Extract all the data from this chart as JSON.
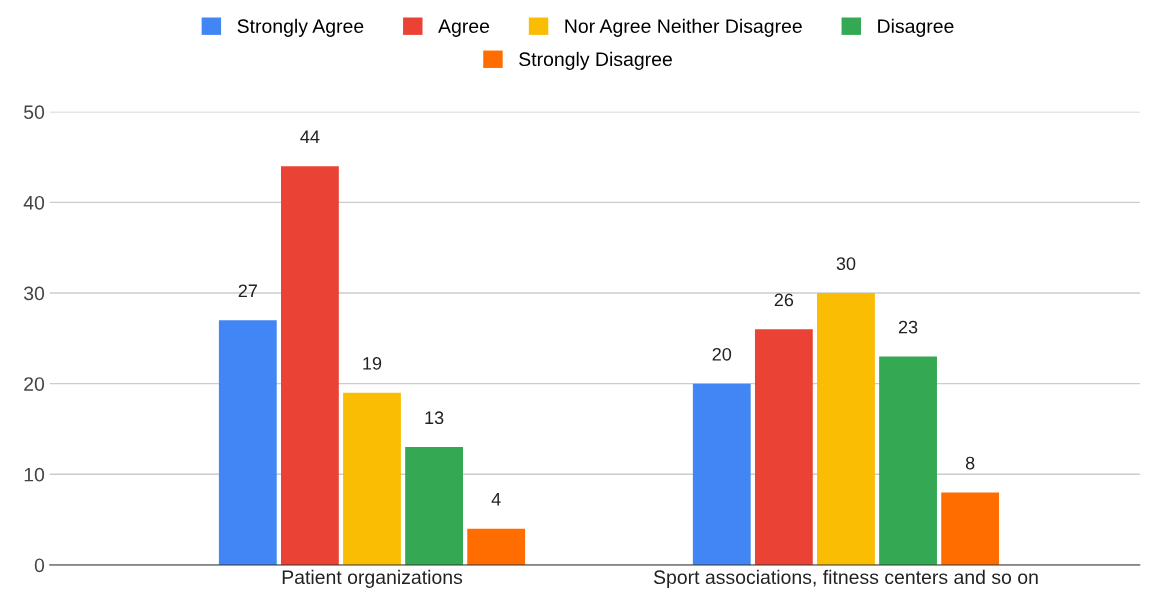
{
  "chart_data": {
    "type": "bar",
    "categories": [
      "Patient organizations",
      "Sport associations, fitness centers and so on"
    ],
    "series": [
      {
        "name": "Strongly Agree",
        "color": "#4285f4",
        "values": [
          27,
          20
        ]
      },
      {
        "name": "Agree",
        "color": "#ea4335",
        "values": [
          44,
          26
        ]
      },
      {
        "name": "Nor Agree Neither Disagree",
        "color": "#fbbc04",
        "values": [
          19,
          30
        ]
      },
      {
        "name": "Disagree",
        "color": "#34a853",
        "values": [
          13,
          23
        ]
      },
      {
        "name": "Strongly Disagree",
        "color": "#ff6d01",
        "values": [
          4,
          8
        ]
      }
    ],
    "ylim": [
      0,
      50
    ],
    "yticks": [
      0,
      10,
      20,
      30,
      40,
      50
    ],
    "grid": "y",
    "legend": "top",
    "data_labels": true
  }
}
